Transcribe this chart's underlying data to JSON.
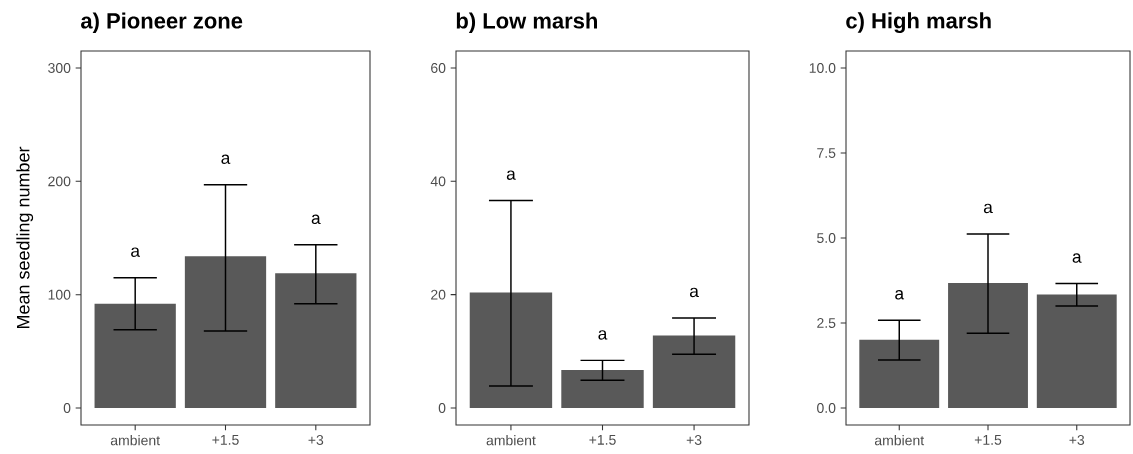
{
  "chart_data": [
    {
      "type": "bar",
      "title": "a) Pioneer zone",
      "ylabel": "Mean seedling number",
      "categories": [
        "ambient",
        "+1.5",
        "+3"
      ],
      "values": [
        92,
        134,
        119
      ],
      "errors": [
        [
          69,
          115
        ],
        [
          68,
          197
        ],
        [
          92,
          144
        ]
      ],
      "color": "#595959",
      "ylim": [
        -15,
        315
      ],
      "yticks": [
        0,
        100,
        200,
        300
      ],
      "annotations": [
        "a",
        "a",
        "a"
      ]
    },
    {
      "type": "bar",
      "title": "b) Low marsh",
      "categories": [
        "ambient",
        "+1.5",
        "+3"
      ],
      "values": [
        20.4,
        6.7,
        12.8
      ],
      "errors": [
        [
          3.9,
          36.6
        ],
        [
          4.9,
          8.4
        ],
        [
          9.5,
          15.9
        ]
      ],
      "color": "#595959",
      "ylim": [
        -3,
        63
      ],
      "yticks": [
        0,
        20,
        40,
        60
      ],
      "annotations": [
        "a",
        "a",
        "a"
      ]
    },
    {
      "type": "bar",
      "title": "c) High marsh",
      "categories": [
        "ambient",
        "+1.5",
        "+3"
      ],
      "values": [
        2.01,
        3.68,
        3.34
      ],
      "errors": [
        [
          1.41,
          2.58
        ],
        [
          2.2,
          5.12
        ],
        [
          3.0,
          3.66
        ]
      ],
      "color": "#595959",
      "ylim": [
        -0.5,
        10.5
      ],
      "yticks": [
        {
          "value": 0,
          "label": "0.0"
        },
        {
          "value": 2.5,
          "label": "2.5"
        },
        {
          "value": 5,
          "label": "5.0"
        },
        {
          "value": 7.5,
          "label": "7.5"
        },
        {
          "value": 10,
          "label": "10.0"
        }
      ],
      "annotations": [
        "a",
        "a",
        "a"
      ]
    }
  ]
}
